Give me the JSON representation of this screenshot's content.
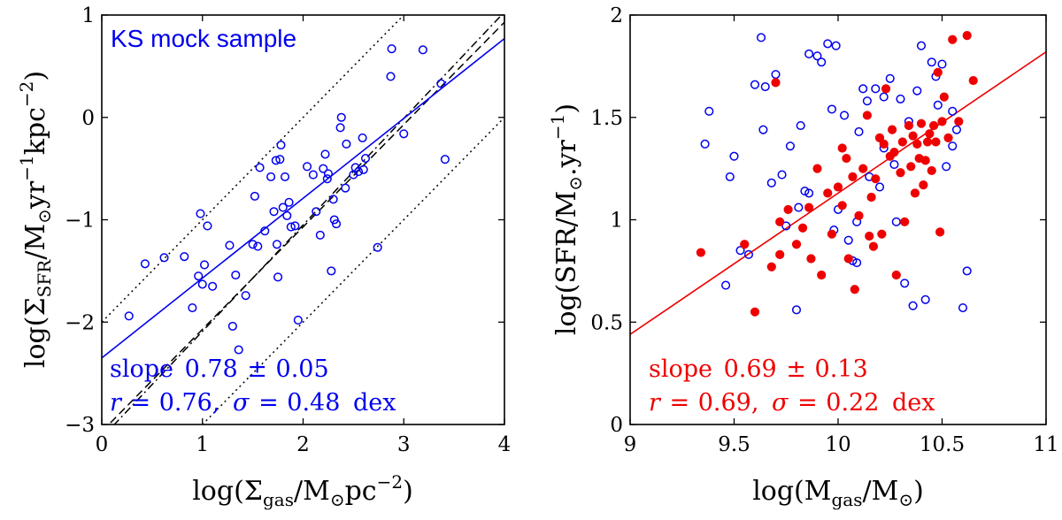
{
  "chart_data": [
    {
      "type": "scatter",
      "title": "",
      "legend_text": "KS mock sample",
      "xlabel": {
        "main": "log(Σ",
        "sub": "gas",
        "mid": "/M",
        "odot": "⊙",
        "tail": "pc",
        "sup": "−2",
        "end": ")"
      },
      "ylabel": {
        "main": "log(Σ",
        "sub": "SFR",
        "mid": "/M",
        "odot": "⊙",
        "yr": "yr",
        "sup1": "−1",
        "kpc": "kpc",
        "sup2": "−2",
        "end": ")"
      },
      "xlim": [
        0,
        4
      ],
      "ylim": [
        -3,
        1
      ],
      "xticks": [
        0,
        1,
        2,
        3,
        4
      ],
      "xtick_labels": [
        "0",
        "1",
        "2",
        "3",
        "4"
      ],
      "yticks": [
        -3,
        -2,
        -1,
        0,
        1
      ],
      "ytick_labels": [
        "−3",
        "−2",
        "−1",
        "0",
        "1"
      ],
      "colors": {
        "points": "#0000ee",
        "fit": "#0000ee",
        "reference": "#000000"
      },
      "series": [
        {
          "name": "KS mock sample",
          "marker": "open-circle",
          "x": [
            0.27,
            0.43,
            0.62,
            0.82,
            0.9,
            0.96,
            0.98,
            1.0,
            1.02,
            1.05,
            1.1,
            1.27,
            1.3,
            1.33,
            1.36,
            1.43,
            1.5,
            1.52,
            1.55,
            1.57,
            1.62,
            1.68,
            1.71,
            1.73,
            1.74,
            1.75,
            1.77,
            1.78,
            1.8,
            1.82,
            1.84,
            1.86,
            1.88,
            1.92,
            1.95,
            2.04,
            2.1,
            2.13,
            2.17,
            2.2,
            2.22,
            2.24,
            2.25,
            2.28,
            2.3,
            2.31,
            2.33,
            2.37,
            2.38,
            2.42,
            2.43,
            2.5,
            2.52,
            2.55,
            2.59,
            2.6,
            2.62,
            2.74,
            2.87,
            2.88,
            3.0,
            3.19,
            3.37,
            3.41
          ],
          "y": [
            -1.94,
            -1.43,
            -1.37,
            -1.36,
            -1.86,
            -1.55,
            -0.94,
            -1.63,
            -1.44,
            -1.06,
            -1.65,
            -1.25,
            -2.04,
            -1.54,
            -2.27,
            -1.74,
            -1.24,
            -0.77,
            -1.26,
            -0.49,
            -1.11,
            -0.58,
            -0.92,
            -0.42,
            -1.24,
            -1.56,
            -0.41,
            -0.27,
            -0.88,
            -0.58,
            -0.96,
            -0.83,
            -1.07,
            -1.06,
            -1.98,
            -0.48,
            -0.56,
            -0.92,
            -1.15,
            -0.5,
            -0.36,
            -0.6,
            -0.55,
            -1.5,
            -0.8,
            -1.0,
            -1.04,
            -0.1,
            0.0,
            -0.69,
            -0.26,
            -0.56,
            -0.49,
            -0.53,
            -0.2,
            -0.51,
            -0.4,
            -1.27,
            0.4,
            0.67,
            -0.16,
            0.66,
            0.33,
            -0.41
          ]
        }
      ],
      "fit_line": {
        "slope": 0.78,
        "intercept": -2.35,
        "x_range": [
          0,
          4
        ]
      },
      "reference_lines": [
        {
          "name": "dashed",
          "style": "dashed",
          "slope": 1.0,
          "intercept": -3.07
        },
        {
          "name": "dashdot",
          "style": "dashdot",
          "slope": 1.04,
          "intercept": -3.13
        },
        {
          "name": "dotted-upper",
          "style": "dotted",
          "slope": 1.0,
          "intercept": -2.0
        },
        {
          "name": "dotted-lower",
          "style": "dotted",
          "slope": 1.0,
          "intercept": -4.0
        }
      ],
      "annotations": {
        "line1": {
          "word": "slope",
          "value": "0.78",
          "pm": "±",
          "err": "0.05"
        },
        "line2": {
          "r_sym": "r",
          "eq1": "=",
          "r_val": "0.76,",
          "sigma_sym": "σ",
          "eq2": "=",
          "sigma_val": "0.48",
          "unit": "dex"
        }
      }
    },
    {
      "type": "scatter",
      "title": "",
      "xlabel": {
        "main": "log(M",
        "sub": "gas",
        "mid": "/M",
        "odot": "⊙",
        "end": ")"
      },
      "ylabel": {
        "main": "log(SFR/M",
        "odot": "⊙",
        "yr": ".yr",
        "sup": "−1",
        "end": ")"
      },
      "xlim": [
        9,
        11
      ],
      "ylim": [
        0,
        2
      ],
      "xticks": [
        9,
        9.5,
        10,
        10.5,
        11
      ],
      "xtick_labels": [
        "9",
        "9.5",
        "10",
        "10.5",
        "11"
      ],
      "yticks": [
        0,
        0.5,
        1,
        1.5,
        2
      ],
      "ytick_labels": [
        "0",
        "0.5",
        "1",
        "1.5",
        "2"
      ],
      "colors": {
        "open": "#0000ee",
        "filled": "#ee0000",
        "fit": "#ee0000"
      },
      "series": [
        {
          "name": "open",
          "marker": "open-circle",
          "x": [
            9.36,
            9.38,
            9.46,
            9.48,
            9.5,
            9.53,
            9.57,
            9.6,
            9.63,
            9.64,
            9.65,
            9.68,
            9.7,
            9.73,
            9.75,
            9.77,
            9.8,
            9.82,
            9.84,
            9.86,
            9.9,
            9.92,
            9.95,
            9.97,
            9.98,
            9.99,
            10.0,
            10.03,
            10.05,
            10.07,
            10.09,
            10.1,
            10.12,
            10.15,
            10.18,
            10.2,
            10.22,
            10.25,
            10.27,
            10.28,
            10.3,
            10.32,
            10.34,
            10.36,
            10.38,
            10.4,
            10.42,
            10.45,
            10.47,
            10.48,
            10.5,
            10.52,
            10.55,
            10.57,
            10.6,
            10.62,
            10.22,
            10.14,
            10.09,
            9.86,
            9.81,
            10.55
          ],
          "y": [
            1.37,
            1.53,
            0.68,
            1.21,
            1.31,
            0.85,
            0.83,
            1.66,
            1.89,
            1.44,
            1.65,
            1.18,
            1.71,
            1.22,
            0.97,
            1.36,
            0.56,
            1.46,
            1.14,
            1.81,
            1.8,
            1.77,
            1.86,
            1.54,
            0.95,
            1.85,
            1.05,
            1.51,
            0.9,
            0.8,
            0.79,
            1.43,
            1.64,
            1.21,
            1.64,
            1.16,
            1.35,
            1.69,
            1.27,
            0.99,
            1.59,
            0.69,
            1.48,
            0.58,
            1.63,
            1.85,
            0.61,
            1.77,
            1.7,
            1.56,
            1.76,
            1.26,
            1.36,
            1.44,
            0.57,
            0.75,
            1.6,
            1.58,
            0.99,
            1.13,
            1.06,
            1.53
          ],
          "fill": "none"
        },
        {
          "name": "filled",
          "marker": "filled-circle",
          "x": [
            9.34,
            9.6,
            9.55,
            9.68,
            9.7,
            9.72,
            9.76,
            9.8,
            9.83,
            9.86,
            9.87,
            9.9,
            9.92,
            9.95,
            9.97,
            10.0,
            10.02,
            10.04,
            10.05,
            10.07,
            10.08,
            10.1,
            10.12,
            10.14,
            10.15,
            10.16,
            10.17,
            10.18,
            10.2,
            10.21,
            10.22,
            10.23,
            10.25,
            10.26,
            10.27,
            10.28,
            10.3,
            10.31,
            10.32,
            10.34,
            10.35,
            10.36,
            10.37,
            10.38,
            10.39,
            10.4,
            10.41,
            10.42,
            10.43,
            10.44,
            10.45,
            10.46,
            10.47,
            10.48,
            10.5,
            10.51,
            10.53,
            10.55,
            10.58,
            10.62,
            10.65,
            9.72,
            10.02,
            10.49
          ],
          "y": [
            0.84,
            0.55,
            0.88,
            0.77,
            1.67,
            0.83,
            1.05,
            0.88,
            0.96,
            1.06,
            0.81,
            1.25,
            0.73,
            1.13,
            0.93,
            1.16,
            1.07,
            1.3,
            0.81,
            1.21,
            0.66,
            1.02,
            1.25,
            1.51,
            0.92,
            1.11,
            0.87,
            1.2,
            1.4,
            0.93,
            1.37,
            1.64,
            1.31,
            1.44,
            1.33,
            0.73,
            1.23,
            1.38,
            0.99,
            1.46,
            1.26,
            1.41,
            1.13,
            1.37,
            1.3,
            1.47,
            1.17,
            1.29,
            1.38,
            1.42,
            1.24,
            1.46,
            1.38,
            1.72,
            1.48,
            1.6,
            1.4,
            1.88,
            1.48,
            1.9,
            1.68,
            0.99,
            1.35,
            0.94
          ]
        }
      ],
      "fit_line": {
        "slope": 0.69,
        "intercept": -5.77,
        "x_range": [
          9,
          11
        ]
      },
      "annotations": {
        "line1": {
          "word": "slope",
          "value": "0.69",
          "pm": "±",
          "err": "0.13"
        },
        "line2": {
          "r_sym": "r",
          "eq1": "=",
          "r_val": "0.69,",
          "sigma_sym": "σ",
          "eq2": "=",
          "sigma_val": "0.22",
          "unit": "dex"
        }
      }
    }
  ]
}
